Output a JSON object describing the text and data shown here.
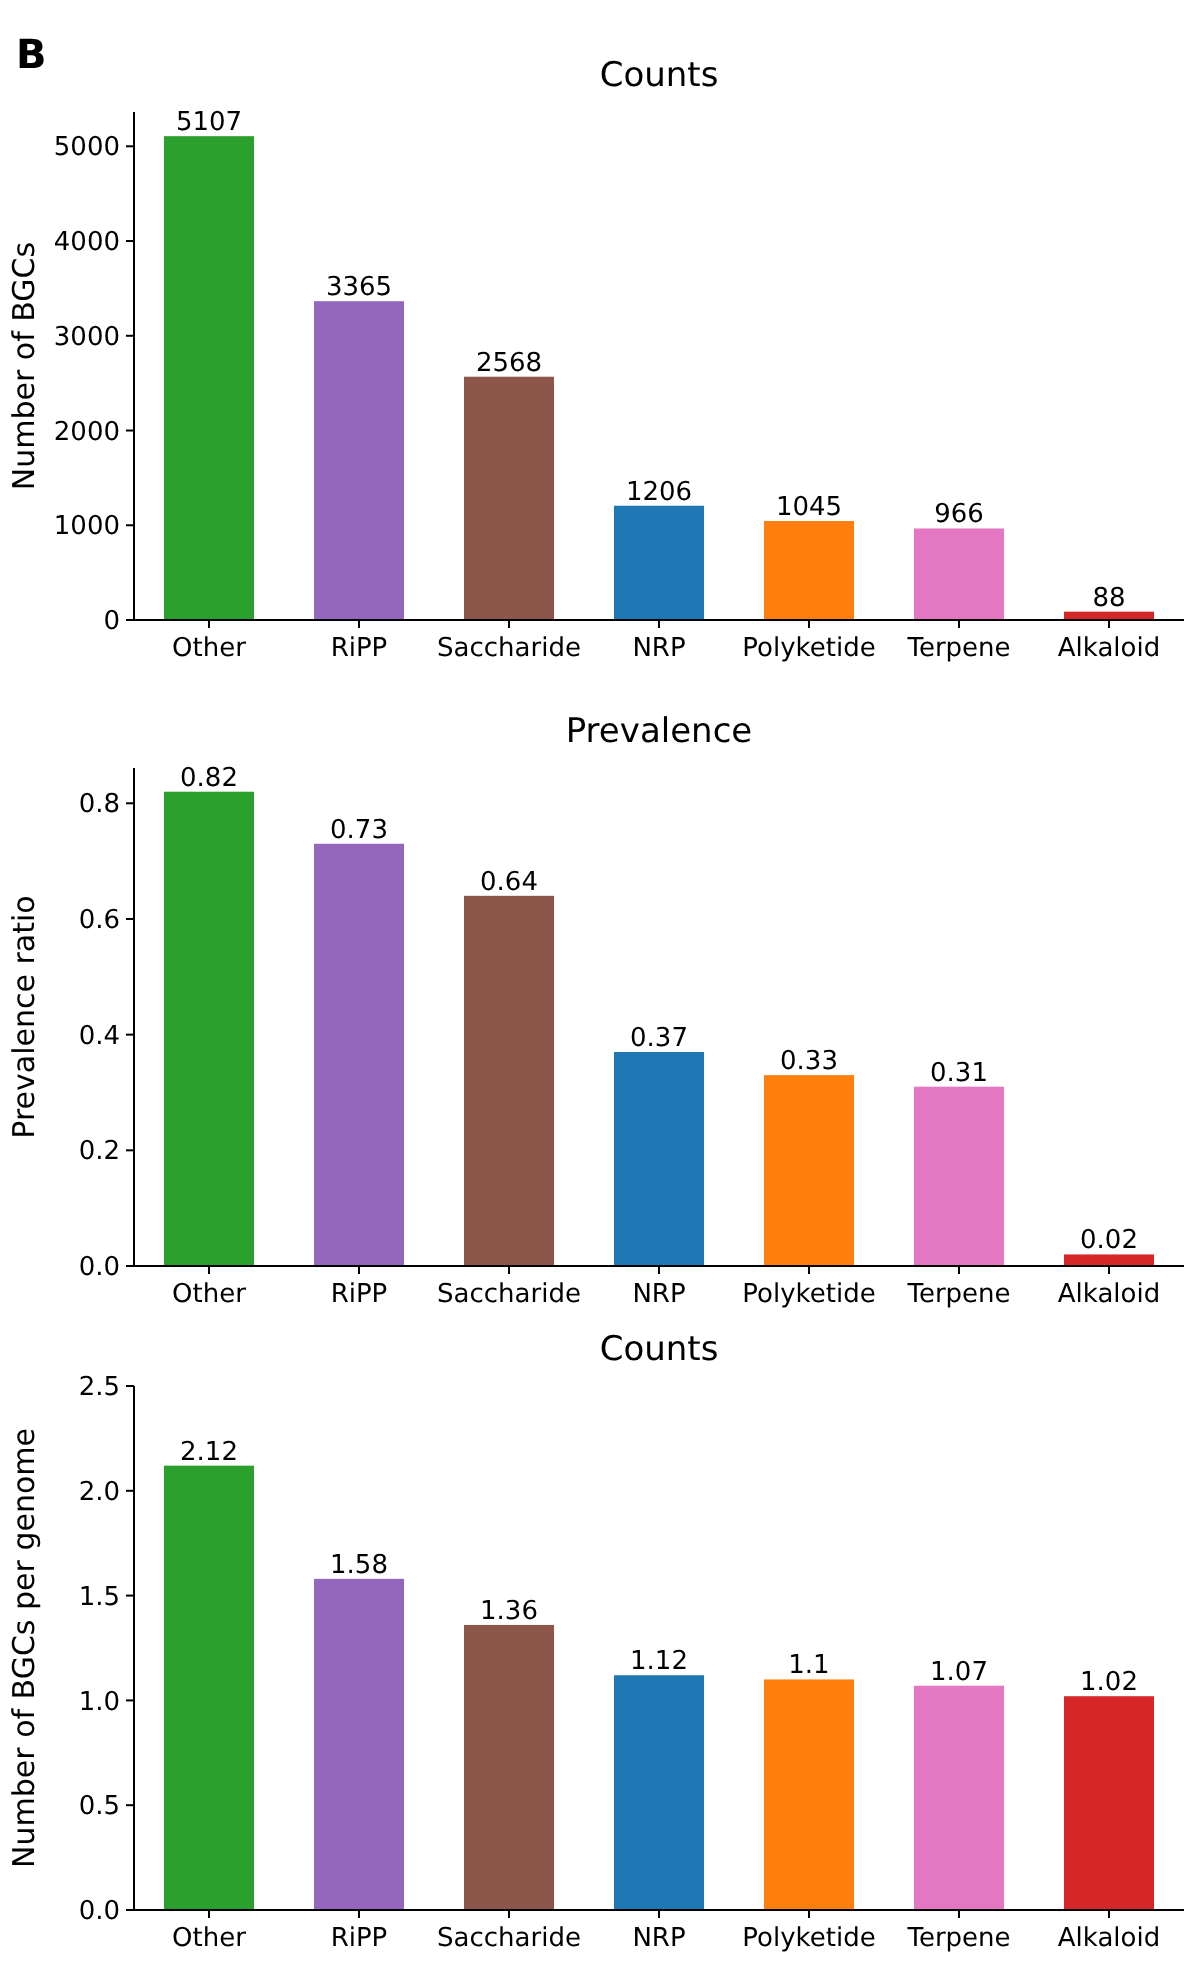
{
  "chart_data": [
    {
      "type": "bar",
      "title": "Counts",
      "ylabel": "Number of BGCs",
      "annotations": [
        "B"
      ],
      "categories": [
        "Other",
        "RiPP",
        "Saccharide",
        "NRP",
        "Polyketide",
        "Terpene",
        "Alkaloid"
      ],
      "values": [
        5107,
        3365,
        2568,
        1206,
        1045,
        966,
        88
      ],
      "colors": [
        "#2ca02c",
        "#9467bd",
        "#8c564b",
        "#1f77b4",
        "#ff7f0e",
        "#e377c2",
        "#d62728"
      ],
      "ylim": [
        0,
        5362
      ],
      "yticks": [
        0,
        1000,
        2000,
        3000,
        4000,
        5000
      ],
      "data_labels": true
    },
    {
      "type": "bar",
      "title": "Prevalence",
      "ylabel": "Prevalence ratio",
      "categories": [
        "Other",
        "RiPP",
        "Saccharide",
        "NRP",
        "Polyketide",
        "Terpene",
        "Alkaloid"
      ],
      "values": [
        0.82,
        0.73,
        0.64,
        0.37,
        0.33,
        0.31,
        0.02
      ],
      "colors": [
        "#2ca02c",
        "#9467bd",
        "#8c564b",
        "#1f77b4",
        "#ff7f0e",
        "#e377c2",
        "#d62728"
      ],
      "ylim": [
        0,
        0.861
      ],
      "yticks": [
        {
          "value": 0,
          "label": "0.0"
        },
        0.2,
        0.4,
        0.6,
        0.8
      ],
      "data_labels": true
    },
    {
      "type": "bar",
      "title": "Counts",
      "ylabel": "Number of BGCs per genome",
      "categories": [
        "Other",
        "RiPP",
        "Saccharide",
        "NRP",
        "Polyketide",
        "Terpene",
        "Alkaloid"
      ],
      "values": [
        2.12,
        1.58,
        1.36,
        1.12,
        1.1,
        1.07,
        1.02
      ],
      "colors": [
        "#2ca02c",
        "#9467bd",
        "#8c564b",
        "#1f77b4",
        "#ff7f0e",
        "#e377c2",
        "#d62728"
      ],
      "ylim": [
        0,
        2.5
      ],
      "yticks": [
        {
          "value": 0,
          "label": "0.0"
        },
        0.5,
        {
          "value": 1,
          "label": "1.0"
        },
        1.5,
        {
          "value": 2,
          "label": "2.0"
        },
        2.5
      ],
      "data_labels": true
    }
  ]
}
